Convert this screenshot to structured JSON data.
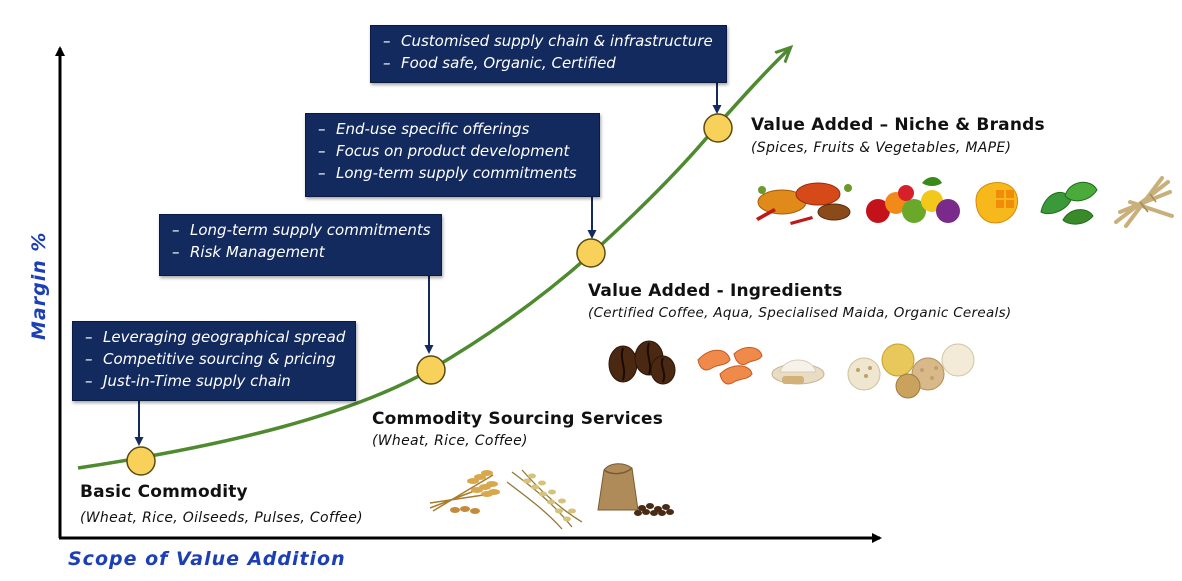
{
  "axes": {
    "x_label": "Scope of Value Addition",
    "y_label": "Margin %"
  },
  "stages": [
    {
      "title": "Basic Commodity",
      "subtitle": "(Wheat, Rice, Oilseeds, Pulses, Coffee)"
    },
    {
      "title": "Commodity Sourcing Services",
      "subtitle": "(Wheat, Rice, Coffee)"
    },
    {
      "title": "Value Added -  Ingredients",
      "subtitle": "(Certified Coffee, Aqua, Specialised Maida, Organic Cereals)"
    },
    {
      "title": "Value Added –  Niche & Brands",
      "subtitle": "(Spices, Fruits & Vegetables, MAPE)"
    }
  ],
  "callouts": [
    {
      "items": [
        "Leveraging geographical spread",
        "Competitive sourcing & pricing",
        "Just-in-Time supply chain"
      ]
    },
    {
      "items": [
        "Long-term supply commitments",
        "Risk Management"
      ]
    },
    {
      "items": [
        "End-use specific offerings",
        "Focus on product development",
        "Long-term supply commitments"
      ]
    },
    {
      "items": [
        "Customised supply chain & infrastructure",
        "Food safe, Organic, Certified"
      ]
    }
  ],
  "bullet": "–",
  "images": {
    "basic": [
      "wheat-icon",
      "rice-icon",
      "coffee-sack-icon"
    ],
    "ingredients": [
      "coffee-beans-icon",
      "shrimp-icon",
      "flour-icon",
      "cereals-icon"
    ],
    "niche": [
      "spices-icon",
      "fruits-vegetables-icon",
      "mango-icon",
      "leaves-icon",
      "roots-icon"
    ]
  },
  "colors": {
    "box_fill": "#132a5e",
    "curve": "#4e8a2f",
    "milestone": "#f7d15a",
    "axis_label": "#1d3fb5"
  }
}
